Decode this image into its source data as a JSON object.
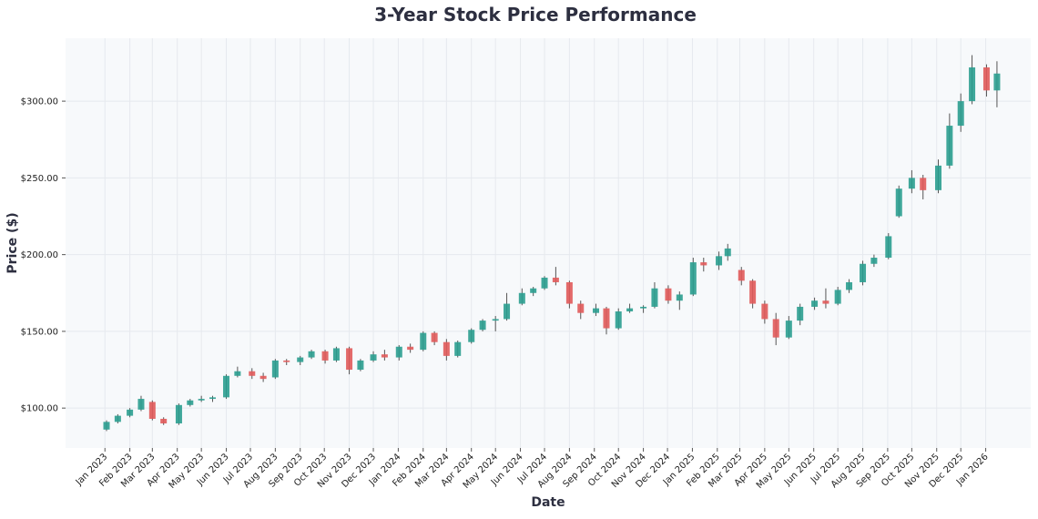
{
  "chart_data": {
    "type": "candlestick",
    "title": "3-Year Stock Price Performance",
    "xlabel": "Date",
    "ylabel": "Price ($)",
    "ylim": [
      74,
      341
    ],
    "xlim": [
      "2022-11-13",
      "2026-02-26"
    ],
    "grid": true,
    "colors": {
      "up": "#2a9d8f",
      "down": "#e05a5a",
      "background": "#f7f9fb",
      "grid": "#e6e9ee",
      "title": "#2d2f40"
    },
    "yticks": [
      100,
      150,
      200,
      250,
      300
    ],
    "ytick_labels": [
      "$100.00",
      "$150.00",
      "$200.00",
      "$250.00",
      "$300.00"
    ],
    "xticks": [
      "2023-01-01",
      "2023-02-01",
      "2023-03-01",
      "2023-04-01",
      "2023-05-01",
      "2023-06-01",
      "2023-07-01",
      "2023-08-01",
      "2023-09-01",
      "2023-10-01",
      "2023-11-01",
      "2023-12-01",
      "2024-01-01",
      "2024-02-01",
      "2024-03-01",
      "2024-04-01",
      "2024-05-01",
      "2024-06-01",
      "2024-07-01",
      "2024-08-01",
      "2024-09-01",
      "2024-10-01",
      "2024-11-01",
      "2024-12-01",
      "2025-01-01",
      "2025-02-01",
      "2025-03-01",
      "2025-04-01",
      "2025-05-01",
      "2025-06-01",
      "2025-07-01",
      "2025-08-01",
      "2025-09-01",
      "2025-10-01",
      "2025-11-01",
      "2025-12-01",
      "2026-01-01"
    ],
    "xtick_labels": [
      "Jan 2023",
      "Feb 2023",
      "Mar 2023",
      "Apr 2023",
      "May 2023",
      "Jun 2023",
      "Jul 2023",
      "Aug 2023",
      "Sep 2023",
      "Oct 2023",
      "Nov 2023",
      "Dec 2023",
      "Jan 2024",
      "Feb 2024",
      "Mar 2024",
      "Apr 2024",
      "May 2024",
      "Jun 2024",
      "Jul 2024",
      "Aug 2024",
      "Sep 2024",
      "Oct 2024",
      "Nov 2024",
      "Dec 2024",
      "Jan 2025",
      "Feb 2025",
      "Mar 2025",
      "Apr 2025",
      "May 2025",
      "Jun 2025",
      "Jul 2025",
      "Aug 2025",
      "Sep 2025",
      "Oct 2025",
      "Nov 2025",
      "Dec 2025",
      "Jan 2026"
    ],
    "ohlc_columns": [
      "date",
      "open",
      "high",
      "low",
      "close"
    ],
    "ohlc": [
      [
        "2023-01-03",
        86,
        92,
        85,
        91
      ],
      [
        "2023-01-17",
        91,
        96,
        90,
        95
      ],
      [
        "2023-02-01",
        95,
        100,
        94,
        99
      ],
      [
        "2023-02-15",
        99,
        108,
        98,
        106
      ],
      [
        "2023-03-01",
        104,
        105,
        92,
        93
      ],
      [
        "2023-03-15",
        93,
        94,
        89,
        90
      ],
      [
        "2023-04-03",
        90,
        103,
        89,
        102
      ],
      [
        "2023-04-17",
        102,
        106,
        101,
        105
      ],
      [
        "2023-05-01",
        105,
        108,
        104,
        106
      ],
      [
        "2023-05-15",
        106,
        108,
        104,
        107
      ],
      [
        "2023-06-01",
        107,
        122,
        106,
        121
      ],
      [
        "2023-06-15",
        121,
        127,
        120,
        124
      ],
      [
        "2023-07-03",
        124,
        126,
        119,
        121
      ],
      [
        "2023-07-17",
        121,
        123,
        117,
        119
      ],
      [
        "2023-08-01",
        120,
        132,
        119,
        131
      ],
      [
        "2023-08-15",
        131,
        132,
        128,
        130
      ],
      [
        "2023-09-01",
        130,
        134,
        128,
        133
      ],
      [
        "2023-09-15",
        133,
        138,
        132,
        137
      ],
      [
        "2023-10-02",
        137,
        138,
        129,
        131
      ],
      [
        "2023-10-16",
        131,
        140,
        130,
        139
      ],
      [
        "2023-11-01",
        139,
        140,
        122,
        125
      ],
      [
        "2023-11-15",
        125,
        132,
        124,
        131
      ],
      [
        "2023-12-01",
        131,
        137,
        130,
        135
      ],
      [
        "2023-12-15",
        135,
        138,
        131,
        133
      ],
      [
        "2024-01-02",
        133,
        141,
        131,
        140
      ],
      [
        "2024-01-16",
        140,
        142,
        136,
        138
      ],
      [
        "2024-02-01",
        138,
        150,
        137,
        149
      ],
      [
        "2024-02-15",
        149,
        150,
        141,
        143
      ],
      [
        "2024-03-01",
        143,
        145,
        131,
        134
      ],
      [
        "2024-03-15",
        134,
        144,
        133,
        143
      ],
      [
        "2024-04-01",
        143,
        152,
        142,
        151
      ],
      [
        "2024-04-15",
        151,
        158,
        150,
        157
      ],
      [
        "2024-05-01",
        157,
        160,
        150,
        158
      ],
      [
        "2024-05-15",
        158,
        175,
        157,
        168
      ],
      [
        "2024-06-03",
        168,
        178,
        167,
        175
      ],
      [
        "2024-06-17",
        175,
        179,
        173,
        178
      ],
      [
        "2024-07-01",
        178,
        186,
        177,
        185
      ],
      [
        "2024-07-15",
        185,
        192,
        180,
        182
      ],
      [
        "2024-08-01",
        182,
        183,
        165,
        168
      ],
      [
        "2024-08-15",
        168,
        170,
        158,
        162
      ],
      [
        "2024-09-03",
        162,
        168,
        160,
        165
      ],
      [
        "2024-09-16",
        165,
        166,
        148,
        152
      ],
      [
        "2024-10-01",
        152,
        165,
        151,
        163
      ],
      [
        "2024-10-15",
        163,
        168,
        162,
        165
      ],
      [
        "2024-11-01",
        165,
        167,
        162,
        166
      ],
      [
        "2024-11-15",
        166,
        182,
        165,
        178
      ],
      [
        "2024-12-02",
        178,
        180,
        168,
        170
      ],
      [
        "2024-12-16",
        170,
        176,
        164,
        174
      ],
      [
        "2025-01-02",
        174,
        198,
        173,
        195
      ],
      [
        "2025-01-15",
        195,
        198,
        189,
        193
      ],
      [
        "2025-02-03",
        193,
        202,
        190,
        199
      ],
      [
        "2025-02-14",
        199,
        207,
        196,
        204
      ],
      [
        "2025-03-03",
        190,
        192,
        180,
        183
      ],
      [
        "2025-03-17",
        183,
        184,
        165,
        168
      ],
      [
        "2025-04-01",
        168,
        170,
        155,
        158
      ],
      [
        "2025-04-15",
        158,
        162,
        141,
        146
      ],
      [
        "2025-05-01",
        146,
        160,
        145,
        157
      ],
      [
        "2025-05-15",
        157,
        168,
        154,
        166
      ],
      [
        "2025-06-02",
        166,
        172,
        164,
        170
      ],
      [
        "2025-06-16",
        170,
        178,
        165,
        168
      ],
      [
        "2025-07-01",
        168,
        179,
        167,
        177
      ],
      [
        "2025-07-15",
        177,
        184,
        175,
        182
      ],
      [
        "2025-08-01",
        182,
        196,
        180,
        194
      ],
      [
        "2025-08-15",
        194,
        200,
        192,
        198
      ],
      [
        "2025-09-02",
        198,
        214,
        197,
        212
      ],
      [
        "2025-09-15",
        225,
        245,
        224,
        243
      ],
      [
        "2025-10-01",
        243,
        255,
        240,
        250
      ],
      [
        "2025-10-15",
        250,
        252,
        236,
        242
      ],
      [
        "2025-11-03",
        242,
        262,
        240,
        258
      ],
      [
        "2025-11-17",
        258,
        292,
        256,
        284
      ],
      [
        "2025-12-01",
        284,
        305,
        280,
        300
      ],
      [
        "2025-12-15",
        300,
        330,
        298,
        322
      ],
      [
        "2026-01-02",
        322,
        324,
        303,
        307
      ],
      [
        "2026-01-15",
        307,
        326,
        296,
        318
      ]
    ]
  }
}
